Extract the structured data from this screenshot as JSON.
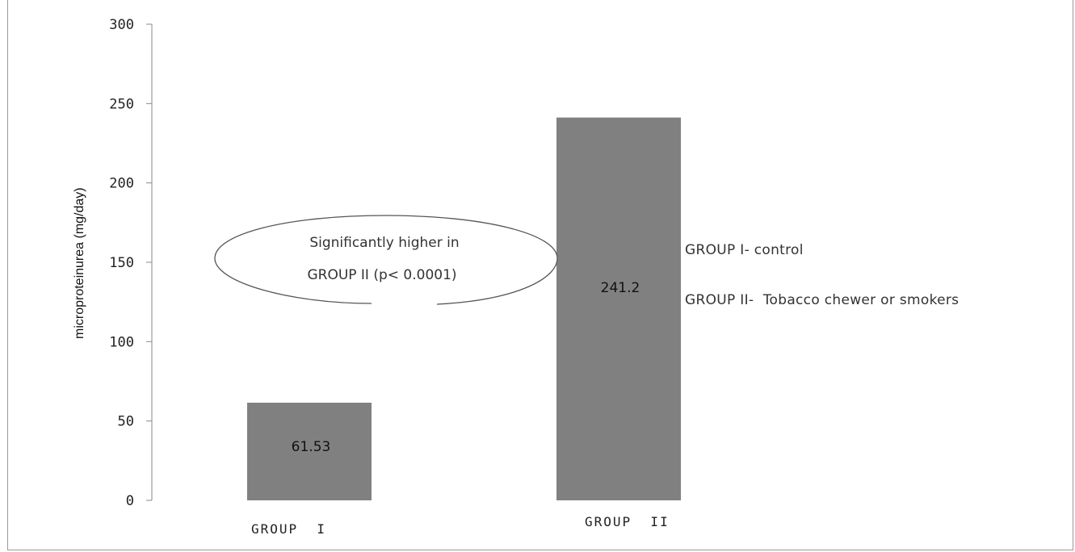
{
  "chart_data": {
    "type": "bar",
    "title": "",
    "ylabel": "microproteinurea (mg/day)",
    "xlabel": "",
    "ylim": [
      0,
      300
    ],
    "yticks": [
      0,
      50,
      100,
      150,
      200,
      250,
      300
    ],
    "categories": [
      "GROUP  I",
      "GROUP  II"
    ],
    "values": [
      61.53,
      241.2
    ],
    "data_labels": [
      "61.53",
      "241.2"
    ],
    "bar_color": "#808080",
    "grid": false,
    "legend_placement": "right",
    "legend": [
      "GROUP I- control",
      "GROUP II-  Tobacco chewer or smokers"
    ],
    "annotation": {
      "lines": [
        "Significantly higher in",
        "GROUP II (p< 0.0001)"
      ]
    }
  }
}
